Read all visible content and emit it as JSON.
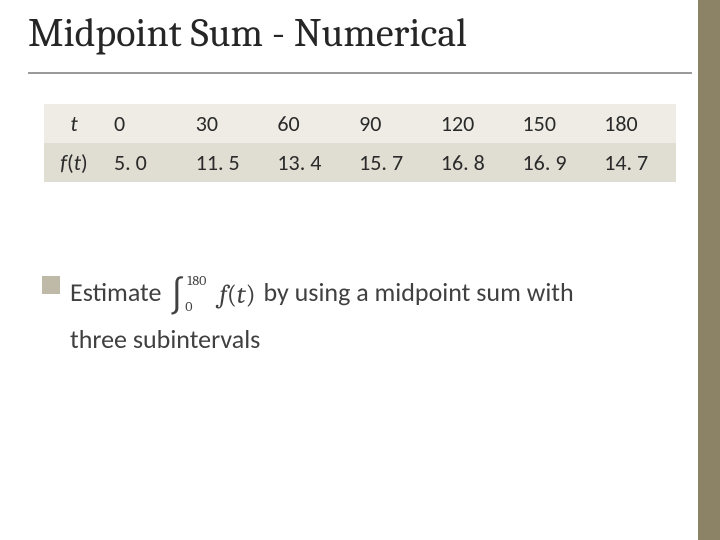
{
  "title": "Midpoint Sum - Numerical",
  "accent_bar_color": "#8c8265",
  "bullet_color": "#bfbaa8",
  "table": {
    "row_colors": [
      "#eeece4",
      "#e0ddd2"
    ],
    "header_cells": [
      "t",
      "f(t)"
    ],
    "columns": [
      "0",
      "30",
      "60",
      "90",
      "120",
      "150",
      "180"
    ],
    "values": [
      "5. 0",
      "11. 5",
      "13. 4",
      "15. 7",
      "16. 8",
      "16. 9",
      "14. 7"
    ]
  },
  "body": {
    "pre": "Estimate ",
    "integral_lower": "0",
    "integral_upper": "180",
    "integral_fn": "f",
    "integral_var": "t",
    "post": " by using a midpoint sum with three subintervals"
  }
}
